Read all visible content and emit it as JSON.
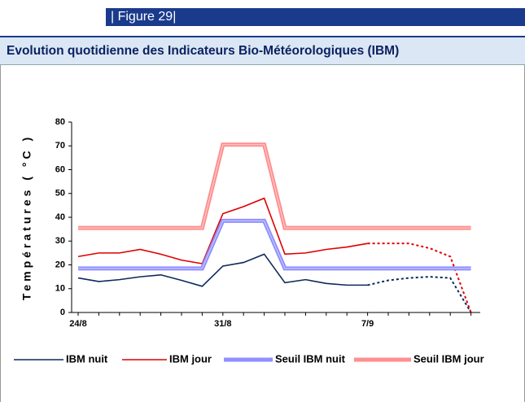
{
  "header": {
    "figure": "| Figure 29|"
  },
  "chart_data": {
    "type": "line",
    "title": "Evolution quotidienne des Indicateurs Bio-Météorologiques (IBM)",
    "y_label": "Températures ( °C )",
    "categories": [
      "24/8",
      null,
      null,
      null,
      null,
      null,
      null,
      "31/8",
      null,
      null,
      null,
      null,
      null,
      null,
      "7/9",
      null,
      null,
      null,
      null,
      null
    ],
    "ylim": [
      0,
      80
    ],
    "yticks": [
      0,
      10,
      20,
      30,
      40,
      50,
      60,
      70,
      80
    ],
    "dashed_from": 14,
    "series": [
      {
        "name": "IBM nuit",
        "color": "#0c2a5c",
        "style": "line",
        "values": [
          14.5,
          13,
          13.8,
          15,
          15.8,
          13.5,
          11,
          19.5,
          21,
          24.5,
          12.5,
          13.8,
          12.2,
          11.5,
          11.5,
          13.5,
          14.5,
          15,
          14.5,
          0
        ]
      },
      {
        "name": "IBM jour",
        "color": "#e00000",
        "style": "line",
        "values": [
          23.5,
          25,
          25,
          26.5,
          24.5,
          22,
          20.5,
          41.5,
          44.5,
          48,
          24.5,
          25,
          26.5,
          27.5,
          29,
          29,
          29,
          27,
          23.5,
          0
        ]
      },
      {
        "name": "Seuil IBM nuit",
        "color": "#8f8fff",
        "style": "band",
        "values": [
          18.5,
          18.5,
          18.5,
          18.5,
          18.5,
          18.5,
          18.5,
          38.5,
          38.5,
          38.5,
          18.5,
          18.5,
          18.5,
          18.5,
          18.5,
          18.5,
          18.5,
          18.5,
          18.5,
          18.5
        ]
      },
      {
        "name": "Seuil IBM jour",
        "color": "#ff8f8f",
        "style": "band",
        "values": [
          35.5,
          35.5,
          35.5,
          35.5,
          35.5,
          35.5,
          35.5,
          70.5,
          70.5,
          70.5,
          35.5,
          35.5,
          35.5,
          35.5,
          35.5,
          35.5,
          35.5,
          35.5,
          35.5,
          35.5
        ]
      }
    ]
  }
}
